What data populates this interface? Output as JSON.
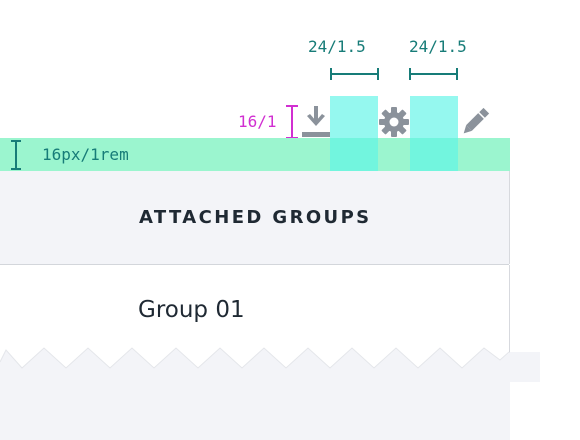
{
  "annotations": {
    "icon_size_left": "24/1.5",
    "icon_size_right": "24/1.5",
    "icon_height": "16/1",
    "toolbar_spacing": "16px/1rem"
  },
  "icons": [
    "download-icon",
    "gear-icon",
    "pencil-icon"
  ],
  "table": {
    "header": "ATTACHED GROUPS",
    "rows": [
      "Group 01"
    ]
  },
  "colors": {
    "measure": "#177c78",
    "vertical_measure": "#d12fd1",
    "spacing_band": "#9bf5cf",
    "icon_highlight": "#5cf5e6",
    "icon": "#8b929b",
    "panel": "#f3f4f8"
  }
}
